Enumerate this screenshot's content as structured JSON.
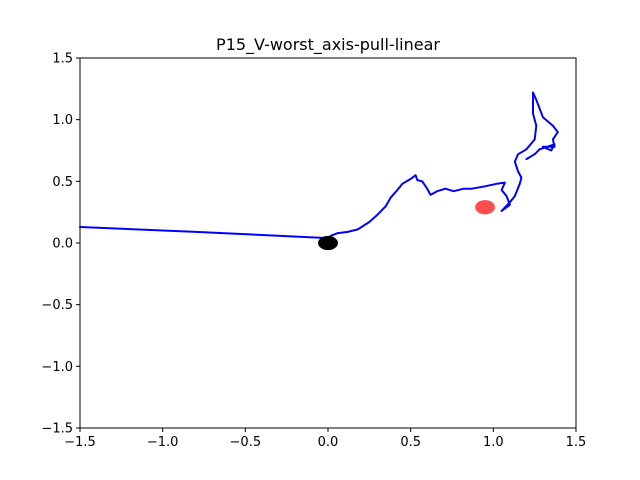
{
  "chart_data": {
    "type": "line",
    "title": "P15_V-worst_axis-pull-linear",
    "xlabel": "",
    "ylabel": "",
    "xlim": [
      -1.5,
      1.5
    ],
    "ylim": [
      -1.5,
      1.5
    ],
    "x_ticks": [
      -1.5,
      -1.0,
      -0.5,
      0.0,
      0.5,
      1.0,
      1.5
    ],
    "y_ticks": [
      -1.5,
      -1.0,
      -0.5,
      0.0,
      0.5,
      1.0,
      1.5
    ],
    "x_tick_labels": [
      "−1.5",
      "−1.0",
      "−0.5",
      "0.0",
      "0.5",
      "1.0",
      "1.5"
    ],
    "y_tick_labels": [
      "−1.5",
      "−1.0",
      "−0.5",
      "0.0",
      "0.5",
      "1.0",
      "1.5"
    ],
    "grid": false,
    "series": [
      {
        "color": "#0000ff",
        "points": [
          [
            -1.5,
            0.13
          ],
          [
            -0.8,
            0.09
          ],
          [
            0.0,
            0.04
          ],
          [
            0.02,
            0.06
          ],
          [
            0.06,
            0.08
          ],
          [
            0.12,
            0.09
          ],
          [
            0.18,
            0.11
          ],
          [
            0.25,
            0.17
          ],
          [
            0.3,
            0.23
          ],
          [
            0.35,
            0.3
          ],
          [
            0.38,
            0.37
          ],
          [
            0.42,
            0.43
          ],
          [
            0.45,
            0.48
          ],
          [
            0.5,
            0.52
          ],
          [
            0.53,
            0.55
          ],
          [
            0.54,
            0.51
          ],
          [
            0.57,
            0.5
          ],
          [
            0.6,
            0.44
          ],
          [
            0.62,
            0.39
          ],
          [
            0.66,
            0.42
          ],
          [
            0.71,
            0.44
          ],
          [
            0.76,
            0.42
          ],
          [
            0.82,
            0.44
          ],
          [
            0.87,
            0.44
          ],
          [
            0.95,
            0.46
          ],
          [
            1.02,
            0.48
          ],
          [
            1.07,
            0.49
          ],
          [
            1.05,
            0.43
          ],
          [
            1.08,
            0.38
          ],
          [
            1.1,
            0.31
          ],
          [
            1.05,
            0.26
          ],
          [
            1.1,
            0.33
          ],
          [
            1.13,
            0.38
          ],
          [
            1.16,
            0.48
          ],
          [
            1.17,
            0.53
          ],
          [
            1.15,
            0.58
          ],
          [
            1.13,
            0.66
          ],
          [
            1.15,
            0.72
          ],
          [
            1.2,
            0.76
          ],
          [
            1.25,
            0.84
          ],
          [
            1.26,
            0.95
          ],
          [
            1.24,
            1.05
          ],
          [
            1.24,
            1.22
          ],
          [
            1.26,
            1.16
          ],
          [
            1.3,
            1.02
          ],
          [
            1.36,
            0.95
          ],
          [
            1.39,
            0.9
          ],
          [
            1.36,
            0.84
          ],
          [
            1.37,
            0.78
          ],
          [
            1.3,
            0.78
          ],
          [
            1.35,
            0.75
          ],
          [
            1.37,
            0.8
          ],
          [
            1.28,
            0.76
          ],
          [
            1.25,
            0.72
          ],
          [
            1.2,
            0.68
          ]
        ]
      }
    ],
    "markers": [
      {
        "x": 0.0,
        "y": 0.0,
        "rx": 0.06,
        "ry": 0.058,
        "color": "#000000",
        "opacity": 1.0
      },
      {
        "x": 0.95,
        "y": 0.29,
        "rx": 0.06,
        "ry": 0.058,
        "color": "#ff0000",
        "opacity": 0.7
      }
    ]
  }
}
